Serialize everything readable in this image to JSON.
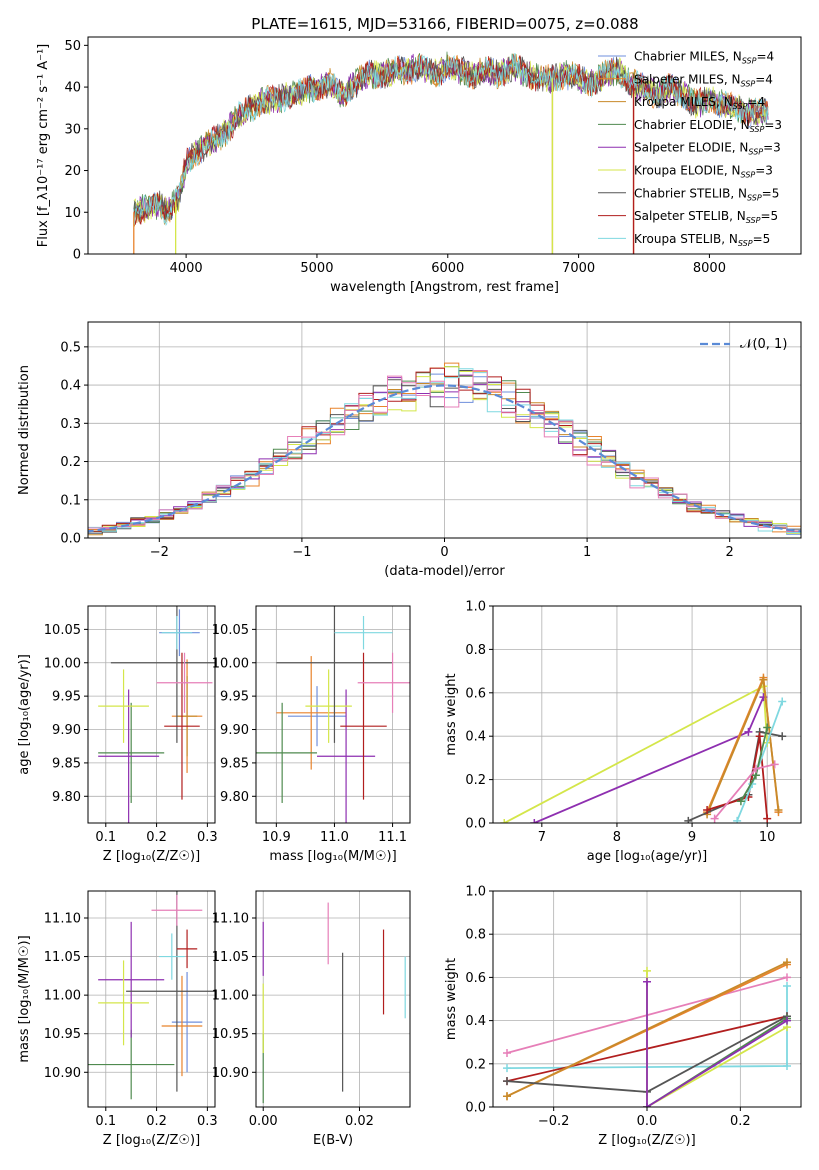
{
  "title": "PLATE=1615, MJD=53166, FIBERID=0075, z=0.088",
  "colors": {
    "Chabrier MILES": "#6f8fdc",
    "Salpeter MILES": "#e8832c",
    "Kroupa MILES": "#c88a2a",
    "Chabrier ELODIE": "#4f8a4f",
    "Salpeter ELODIE": "#8e2fb0",
    "Kroupa ELODIE": "#d4e64a",
    "Chabrier STELIB": "#555555",
    "Salpeter STELIB": "#b11e1e",
    "Kroupa STELIB": "#7fd8e0",
    "Pink": "#e67fb8",
    "Gaussian": "#5a8ad6"
  },
  "chart_data": [
    {
      "id": "spectrum",
      "type": "line",
      "xlabel": "wavelength [Angstrom, rest frame]",
      "ylabel": "Flux [f_λ10⁻¹⁷ erg cm⁻² s⁻¹ A⁻¹]",
      "xlim": [
        3250,
        8700
      ],
      "ylim": [
        0,
        52
      ],
      "xticks": [
        "4000",
        "5000",
        "6000",
        "7000",
        "8000"
      ],
      "yticks": [
        "0",
        "10",
        "20",
        "30",
        "40",
        "50"
      ],
      "legend": [
        {
          "name": "Chabrier MILES",
          "sub": "SSP",
          "n": "4"
        },
        {
          "name": "Salpeter MILES",
          "sub": "SSP",
          "n": "4"
        },
        {
          "name": "Kroupa MILES",
          "sub": "SSP",
          "n": "4"
        },
        {
          "name": "Chabrier ELODIE",
          "sub": "SSP",
          "n": "3"
        },
        {
          "name": "Salpeter ELODIE",
          "sub": "SSP",
          "n": "3"
        },
        {
          "name": "Kroupa ELODIE",
          "sub": "SSP",
          "n": "3"
        },
        {
          "name": "Chabrier STELIB",
          "sub": "SSP",
          "n": "5"
        },
        {
          "name": "Salpeter STELIB",
          "sub": "SSP",
          "n": "5"
        },
        {
          "name": "Kroupa STELIB",
          "sub": "SSP",
          "n": "5"
        }
      ],
      "continuum": [
        [
          3600,
          10
        ],
        [
          3700,
          11
        ],
        [
          3800,
          12
        ],
        [
          3850,
          10
        ],
        [
          3950,
          14
        ],
        [
          4000,
          22
        ],
        [
          4100,
          25
        ],
        [
          4200,
          27
        ],
        [
          4300,
          29
        ],
        [
          4400,
          33
        ],
        [
          4500,
          35
        ],
        [
          4600,
          37
        ],
        [
          4700,
          37
        ],
        [
          4800,
          38
        ],
        [
          4900,
          39
        ],
        [
          5000,
          40
        ],
        [
          5100,
          41
        ],
        [
          5200,
          38
        ],
        [
          5300,
          41
        ],
        [
          5400,
          43
        ],
        [
          5500,
          43
        ],
        [
          5600,
          44
        ],
        [
          5700,
          44
        ],
        [
          5800,
          45
        ],
        [
          5900,
          43
        ],
        [
          6000,
          45
        ],
        [
          6100,
          44
        ],
        [
          6200,
          43
        ],
        [
          6300,
          44
        ],
        [
          6400,
          43
        ],
        [
          6500,
          45
        ],
        [
          6600,
          43
        ],
        [
          6700,
          42
        ],
        [
          6800,
          42
        ],
        [
          6900,
          43
        ],
        [
          7000,
          42
        ],
        [
          7100,
          41
        ],
        [
          7200,
          43
        ],
        [
          7300,
          44
        ],
        [
          7400,
          41
        ],
        [
          7500,
          40
        ],
        [
          7600,
          38
        ],
        [
          7700,
          40
        ],
        [
          7800,
          38
        ],
        [
          7900,
          36
        ],
        [
          8000,
          37
        ],
        [
          8100,
          36
        ],
        [
          8200,
          35
        ],
        [
          8300,
          34
        ],
        [
          8450,
          34
        ]
      ],
      "drops": [
        {
          "series": "Salpeter MILES",
          "x": 3600
        },
        {
          "series": "Kroupa ELODIE",
          "x": 3920
        },
        {
          "series": "Kroupa MILES",
          "x": 6800
        },
        {
          "series": "Kroupa ELODIE",
          "x": 6800
        },
        {
          "series": "Salpeter MILES",
          "x": 7420
        },
        {
          "series": "Salpeter STELIB",
          "x": 7420
        }
      ]
    },
    {
      "id": "residuals",
      "type": "histogram",
      "xlabel": "(data-model)/error",
      "ylabel": "Normed distribution",
      "xlim": [
        -2.5,
        2.5
      ],
      "ylim": [
        0,
        0.565
      ],
      "xticks": [
        "−2",
        "−1",
        "0",
        "1",
        "2"
      ],
      "yticks": [
        "0.0",
        "0.1",
        "0.2",
        "0.3",
        "0.4",
        "0.5"
      ],
      "grid": true,
      "reference": {
        "name": "𝒩(0, 1)",
        "mean": 0,
        "sigma": 1
      },
      "bin_width": 0.1
    },
    {
      "id": "age-vs-Z",
      "type": "errorbar",
      "xlabel": "Z [log₁₀(Z/Z☉)]",
      "ylabel": "age  [log₁₀(age/yr)]",
      "xlim": [
        0.065,
        0.315
      ],
      "ylim": [
        9.76,
        10.085
      ],
      "xticks": [
        "0.1",
        "0.2",
        "0.3"
      ],
      "yticks": [
        "9.80",
        "9.85",
        "9.90",
        "9.95",
        "10.00",
        "10.05"
      ],
      "grid": true,
      "points": [
        {
          "series": "Chabrier MILES",
          "x": 0.245,
          "y": 10.045,
          "xerr": 0.04,
          "yerr": 0.035
        },
        {
          "series": "Salpeter MILES",
          "x": 0.26,
          "y": 9.92,
          "xerr": 0.03,
          "yerr": 0.085
        },
        {
          "series": "Kroupa MILES",
          "x": 0.26,
          "y": 9.92,
          "xerr": 0.02,
          "yerr": 0.06
        },
        {
          "series": "Chabrier ELODIE",
          "x": 0.15,
          "y": 9.865,
          "xerr": 0.065,
          "yerr": 0.075
        },
        {
          "series": "Salpeter ELODIE",
          "x": 0.145,
          "y": 9.86,
          "xerr": 0.06,
          "yerr": 0.1
        },
        {
          "series": "Kroupa ELODIE",
          "x": 0.135,
          "y": 9.935,
          "xerr": 0.05,
          "yerr": 0.055
        },
        {
          "series": "Chabrier STELIB",
          "x": 0.24,
          "y": 10.0,
          "xerr": 0.13,
          "yerr": 0.12
        },
        {
          "series": "Salpeter STELIB",
          "x": 0.25,
          "y": 9.905,
          "xerr": 0.035,
          "yerr": 0.11
        },
        {
          "series": "Kroupa STELIB",
          "x": 0.24,
          "y": 10.045,
          "xerr": 0.03,
          "yerr": 0.025
        },
        {
          "series": "Pink",
          "x": 0.255,
          "y": 9.97,
          "xerr": 0.055,
          "yerr": 0.045
        }
      ]
    },
    {
      "id": "age-vs-mass",
      "type": "errorbar",
      "xlabel": "mass [log₁₀(M/M☉)]",
      "xlim": [
        10.865,
        11.13
      ],
      "ylim": [
        9.76,
        10.085
      ],
      "xticks": [
        "10.9",
        "11.0",
        "11.1"
      ],
      "yticks": [
        "9.80",
        "9.85",
        "9.90",
        "9.95",
        "10.00",
        "10.05"
      ],
      "grid": true,
      "points": [
        {
          "series": "Chabrier MILES",
          "x": 10.97,
          "y": 9.92,
          "xerr": 0.05,
          "yerr": 0.045
        },
        {
          "series": "Salpeter MILES",
          "x": 10.96,
          "y": 9.925,
          "xerr": 0.06,
          "yerr": 0.085
        },
        {
          "series": "Chabrier ELODIE",
          "x": 10.91,
          "y": 9.865,
          "xerr": 0.06,
          "yerr": 0.075
        },
        {
          "series": "Salpeter ELODIE",
          "x": 11.02,
          "y": 9.86,
          "xerr": 0.05,
          "yerr": 0.1
        },
        {
          "series": "Kroupa ELODIE",
          "x": 10.99,
          "y": 9.935,
          "xerr": 0.04,
          "yerr": 0.055
        },
        {
          "series": "Chabrier STELIB",
          "x": 11.0,
          "y": 10.0,
          "xerr": 0.1,
          "yerr": 0.12
        },
        {
          "series": "Salpeter STELIB",
          "x": 11.05,
          "y": 9.905,
          "xerr": 0.04,
          "yerr": 0.11
        },
        {
          "series": "Kroupa STELIB",
          "x": 11.05,
          "y": 10.045,
          "xerr": 0.05,
          "yerr": 0.025
        },
        {
          "series": "Pink",
          "x": 11.1,
          "y": 9.97,
          "xerr": 0.06,
          "yerr": 0.045
        }
      ]
    },
    {
      "id": "weight-vs-age",
      "type": "line",
      "xlabel": "age  [log₁₀(age/yr)]",
      "ylabel": "mass weight",
      "xlim": [
        6.35,
        10.45
      ],
      "ylim": [
        0,
        1
      ],
      "xticks": [
        "7",
        "8",
        "9",
        "10"
      ],
      "yticks": [
        "0.0",
        "0.2",
        "0.4",
        "0.6",
        "0.8",
        "1.0"
      ],
      "grid": true,
      "series": [
        {
          "name": "Kroupa ELODIE",
          "points": [
            [
              6.5,
              0.0
            ],
            [
              9.95,
              0.63
            ],
            [
              10.0,
              0.37
            ]
          ]
        },
        {
          "name": "Salpeter ELODIE",
          "points": [
            [
              6.9,
              0.0
            ],
            [
              9.75,
              0.42
            ],
            [
              9.95,
              0.58
            ]
          ]
        },
        {
          "name": "Salpeter MILES",
          "points": [
            [
              9.2,
              0.05
            ],
            [
              9.95,
              0.67
            ],
            [
              10.15,
              0.05
            ]
          ]
        },
        {
          "name": "Kroupa MILES",
          "points": [
            [
              9.2,
              0.04
            ],
            [
              9.95,
              0.66
            ],
            [
              10.15,
              0.06
            ]
          ]
        },
        {
          "name": "Chabrier STELIB",
          "points": [
            [
              8.95,
              0.01
            ],
            [
              9.75,
              0.13
            ],
            [
              9.9,
              0.42
            ],
            [
              10.2,
              0.4
            ]
          ]
        },
        {
          "name": "Salpeter STELIB",
          "points": [
            [
              9.2,
              0.06
            ],
            [
              9.75,
              0.12
            ],
            [
              9.9,
              0.4
            ],
            [
              10.0,
              0.02
            ]
          ]
        },
        {
          "name": "Kroupa STELIB",
          "points": [
            [
              9.6,
              0.01
            ],
            [
              9.8,
              0.18
            ],
            [
              10.2,
              0.56
            ]
          ]
        },
        {
          "name": "Chabrier ELODIE",
          "points": [
            [
              9.65,
              0.1
            ],
            [
              9.85,
              0.22
            ],
            [
              10.0,
              0.44
            ]
          ]
        },
        {
          "name": "Pink",
          "points": [
            [
              9.3,
              0.02
            ],
            [
              9.85,
              0.25
            ],
            [
              10.1,
              0.27
            ]
          ]
        }
      ]
    },
    {
      "id": "mass-vs-Z",
      "type": "errorbar",
      "xlabel": "Z [log₁₀(Z/Z☉)]",
      "ylabel": "mass [log₁₀(M/M☉)]",
      "xlim": [
        0.065,
        0.315
      ],
      "ylim": [
        10.855,
        11.135
      ],
      "xticks": [
        "0.1",
        "0.2",
        "0.3"
      ],
      "yticks": [
        "10.90",
        "10.95",
        "11.00",
        "11.05",
        "11.10"
      ],
      "grid": true,
      "points": [
        {
          "series": "Chabrier MILES",
          "x": 0.26,
          "y": 10.965,
          "xerr": 0.03,
          "yerr": 0.065
        },
        {
          "series": "Salpeter MILES",
          "x": 0.25,
          "y": 10.96,
          "xerr": 0.04,
          "yerr": 0.065
        },
        {
          "series": "Chabrier ELODIE",
          "x": 0.15,
          "y": 10.91,
          "xerr": 0.085,
          "yerr": 0.045
        },
        {
          "series": "Salpeter ELODIE",
          "x": 0.15,
          "y": 11.02,
          "xerr": 0.065,
          "yerr": 0.075
        },
        {
          "series": "Kroupa ELODIE",
          "x": 0.135,
          "y": 10.99,
          "xerr": 0.05,
          "yerr": 0.055
        },
        {
          "series": "Chabrier STELIB",
          "x": 0.24,
          "y": 11.005,
          "xerr": 0.1,
          "yerr": 0.13
        },
        {
          "series": "Salpeter STELIB",
          "x": 0.26,
          "y": 11.06,
          "xerr": 0.02,
          "yerr": 0.025
        },
        {
          "series": "Kroupa STELIB",
          "x": 0.23,
          "y": 11.05,
          "xerr": 0.025,
          "yerr": 0.03
        },
        {
          "series": "Pink",
          "x": 0.24,
          "y": 11.11,
          "xerr": 0.05,
          "yerr": 0.02
        }
      ]
    },
    {
      "id": "mass-vs-ebv",
      "type": "errorbar",
      "xlabel": "E(B-V)",
      "xlim": [
        -0.0015,
        0.0305
      ],
      "ylim": [
        10.855,
        11.135
      ],
      "xticks": [
        "0.00",
        "0.02"
      ],
      "yticks": [
        "10.90",
        "10.95",
        "11.00",
        "11.05",
        "11.10"
      ],
      "grid": true,
      "points": [
        {
          "series": "Chabrier ELODIE",
          "x": 0.0,
          "y": 10.905,
          "xerr": 0,
          "yerr": 0.045
        },
        {
          "series": "Kroupa ELODIE",
          "x": 0.0,
          "y": 10.97,
          "xerr": 0,
          "yerr": 0.045
        },
        {
          "series": "Salpeter ELODIE",
          "x": 0.0,
          "y": 11.06,
          "xerr": 0,
          "yerr": 0.035
        },
        {
          "series": "Pink",
          "x": 0.0135,
          "y": 11.08,
          "xerr": 0,
          "yerr": 0.04
        },
        {
          "series": "Chabrier STELIB",
          "x": 0.0165,
          "y": 10.965,
          "xerr": 0,
          "yerr": 0.09
        },
        {
          "series": "Salpeter STELIB",
          "x": 0.025,
          "y": 11.03,
          "xerr": 0,
          "yerr": 0.055
        },
        {
          "series": "Kroupa STELIB",
          "x": 0.0295,
          "y": 11.01,
          "xerr": 0,
          "yerr": 0.04
        }
      ]
    },
    {
      "id": "weight-vs-Z",
      "type": "line",
      "xlabel": "Z [log₁₀(Z/Z☉)]",
      "ylabel": "mass weight",
      "xlim": [
        -0.33,
        0.33
      ],
      "ylim": [
        0,
        1
      ],
      "xticks": [
        "−0.2",
        "0.0",
        "0.2"
      ],
      "yticks": [
        "0.0",
        "0.2",
        "0.4",
        "0.6",
        "0.8",
        "1.0"
      ],
      "grid": true,
      "series": [
        {
          "name": "Pink",
          "points": [
            [
              -0.3,
              0.25
            ],
            [
              0.3,
              0.6
            ]
          ]
        },
        {
          "name": "Kroupa STELIB",
          "points": [
            [
              -0.3,
              0.18
            ],
            [
              0.3,
              0.19
            ],
            [
              0.3,
              0.56
            ]
          ]
        },
        {
          "name": "Salpeter STELIB",
          "points": [
            [
              -0.3,
              0.12
            ],
            [
              0.3,
              0.42
            ]
          ]
        },
        {
          "name": "Salpeter MILES",
          "points": [
            [
              -0.3,
              0.05
            ],
            [
              0.3,
              0.66
            ]
          ]
        },
        {
          "name": "Kroupa MILES",
          "points": [
            [
              -0.3,
              0.05
            ],
            [
              0.3,
              0.67
            ]
          ]
        },
        {
          "name": "Chabrier STELIB",
          "points": [
            [
              -0.3,
              0.12
            ],
            [
              0.0,
              0.07
            ],
            [
              0.3,
              0.42
            ]
          ]
        },
        {
          "name": "Kroupa ELODIE",
          "points": [
            [
              0.0,
              0.63
            ],
            [
              0.0,
              0.0
            ],
            [
              0.3,
              0.37
            ]
          ]
        },
        {
          "name": "Chabrier ELODIE",
          "points": [
            [
              0.0,
              0.0
            ],
            [
              0.3,
              0.41
            ]
          ]
        },
        {
          "name": "Salpeter ELODIE",
          "points": [
            [
              0.0,
              0.58
            ],
            [
              0.0,
              0.0
            ],
            [
              0.3,
              0.4
            ]
          ]
        }
      ]
    }
  ]
}
